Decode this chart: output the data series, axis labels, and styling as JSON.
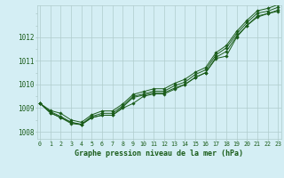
{
  "xlabel": "Graphe pression niveau de la mer (hPa)",
  "hours": [
    0,
    1,
    2,
    3,
    4,
    5,
    6,
    7,
    8,
    9,
    10,
    11,
    12,
    13,
    14,
    15,
    16,
    17,
    18,
    19,
    20,
    21,
    22,
    23
  ],
  "series": [
    [
      1009.2,
      1008.8,
      1008.6,
      1008.4,
      1008.3,
      1008.6,
      1008.7,
      1008.7,
      1009.0,
      1009.2,
      1009.5,
      1009.6,
      1009.6,
      1009.8,
      1010.0,
      1010.3,
      1010.5,
      1011.1,
      1011.2,
      1012.0,
      1012.5,
      1012.9,
      1013.0,
      1013.1
    ],
    [
      1009.2,
      1008.8,
      1008.6,
      1008.35,
      1008.3,
      1008.6,
      1008.7,
      1008.7,
      1009.05,
      1009.45,
      1009.55,
      1009.65,
      1009.65,
      1009.85,
      1010.0,
      1010.3,
      1010.5,
      1011.15,
      1011.4,
      1012.05,
      1012.5,
      1012.85,
      1013.0,
      1013.15
    ],
    [
      1009.2,
      1008.85,
      1008.65,
      1008.4,
      1008.32,
      1008.65,
      1008.78,
      1008.78,
      1009.1,
      1009.5,
      1009.6,
      1009.72,
      1009.72,
      1009.95,
      1010.1,
      1010.42,
      1010.62,
      1011.25,
      1011.55,
      1012.15,
      1012.62,
      1013.02,
      1013.1,
      1013.27
    ],
    [
      1009.2,
      1008.9,
      1008.78,
      1008.5,
      1008.4,
      1008.72,
      1008.88,
      1008.88,
      1009.18,
      1009.58,
      1009.7,
      1009.82,
      1009.82,
      1010.05,
      1010.22,
      1010.52,
      1010.72,
      1011.35,
      1011.65,
      1012.25,
      1012.72,
      1013.12,
      1013.22,
      1013.38
    ]
  ],
  "line_color": "#1a5c1a",
  "marker_color": "#1a5c1a",
  "bg_color": "#d4eef4",
  "grid_color": "#b0cccc",
  "axis_label_color": "#1a5c1a",
  "tick_label_color": "#1a5c1a",
  "ylim": [
    1007.7,
    1013.35
  ],
  "yticks": [
    1008,
    1009,
    1010,
    1011,
    1012
  ],
  "xticks": [
    0,
    1,
    2,
    3,
    4,
    5,
    6,
    7,
    8,
    9,
    10,
    11,
    12,
    13,
    14,
    15,
    16,
    17,
    18,
    19,
    20,
    21,
    22,
    23
  ],
  "xtick_labels": [
    "0",
    "1",
    "2",
    "3",
    "4",
    "5",
    "6",
    "7",
    "8",
    "9",
    "10",
    "11",
    "12",
    "13",
    "14",
    "15",
    "16",
    "17",
    "18",
    "19",
    "20",
    "21",
    "22",
    "23"
  ]
}
